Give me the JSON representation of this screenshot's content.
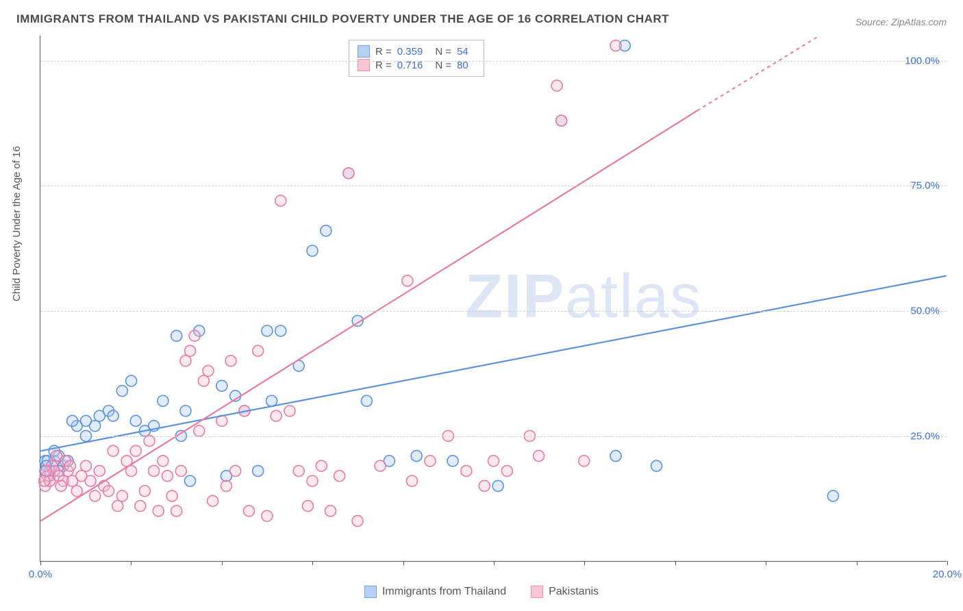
{
  "title": "IMMIGRANTS FROM THAILAND VS PAKISTANI CHILD POVERTY UNDER THE AGE OF 16 CORRELATION CHART",
  "source": "Source: ZipAtlas.com",
  "ylabel": "Child Poverty Under the Age of 16",
  "watermark_bold": "ZIP",
  "watermark_rest": "atlas",
  "chart": {
    "type": "scatter-with-regression",
    "xlim": [
      0,
      20
    ],
    "ylim": [
      0,
      105
    ],
    "x_ticks_labeled": [
      {
        "v": 0.0,
        "label": "0.0%"
      },
      {
        "v": 20.0,
        "label": "20.0%"
      }
    ],
    "x_ticks_minor": [
      2.0,
      4.0,
      6.0,
      8.0,
      10.0,
      12.0,
      14.0,
      16.0,
      18.0
    ],
    "y_ticks": [
      {
        "v": 25.0,
        "label": "25.0%"
      },
      {
        "v": 50.0,
        "label": "50.0%"
      },
      {
        "v": 75.0,
        "label": "75.0%"
      },
      {
        "v": 100.0,
        "label": "100.0%"
      }
    ],
    "background_color": "#ffffff",
    "grid_color": "#d0d0d0",
    "axis_color": "#555555",
    "tick_label_color": "#3b6fd8",
    "marker_radius": 8,
    "marker_stroke_width": 1.6,
    "marker_fill_opacity": 0.35,
    "series": [
      {
        "key": "thailand",
        "label": "Immigrants from Thailand",
        "color_stroke": "#5a91e0",
        "color_fill": "#a9c8f2",
        "r_value": "0.359",
        "n_value": "54",
        "regression": {
          "x1": 0,
          "y1": 22,
          "x2": 20,
          "y2": 57
        },
        "points": [
          [
            0.1,
            20
          ],
          [
            0.2,
            18
          ],
          [
            0.3,
            20
          ],
          [
            0.4,
            21
          ],
          [
            0.5,
            19
          ],
          [
            0.3,
            22
          ],
          [
            0.6,
            20
          ],
          [
            0.8,
            27
          ],
          [
            1.0,
            28
          ],
          [
            1.2,
            27
          ],
          [
            1.3,
            29
          ],
          [
            1.5,
            30
          ],
          [
            1.6,
            29
          ],
          [
            1.8,
            34
          ],
          [
            2.0,
            36
          ],
          [
            2.1,
            28
          ],
          [
            2.3,
            26
          ],
          [
            2.5,
            27
          ],
          [
            2.7,
            32
          ],
          [
            3.0,
            45
          ],
          [
            3.1,
            25
          ],
          [
            3.2,
            30
          ],
          [
            3.3,
            16
          ],
          [
            3.5,
            46
          ],
          [
            4.0,
            35
          ],
          [
            4.1,
            17
          ],
          [
            4.3,
            33
          ],
          [
            4.5,
            30
          ],
          [
            5.0,
            46
          ],
          [
            5.1,
            32
          ],
          [
            5.3,
            46
          ],
          [
            5.7,
            39
          ],
          [
            6.0,
            62
          ],
          [
            6.3,
            66
          ],
          [
            7.0,
            48
          ],
          [
            7.2,
            32
          ],
          [
            7.7,
            20
          ],
          [
            8.3,
            21
          ],
          [
            9.1,
            20
          ],
          [
            10.1,
            15
          ],
          [
            11.5,
            88
          ],
          [
            12.7,
            21
          ],
          [
            12.9,
            103
          ],
          [
            13.6,
            19
          ],
          [
            17.5,
            13
          ],
          [
            6.8,
            77.5
          ],
          [
            4.8,
            18
          ],
          [
            1.0,
            25
          ],
          [
            0.7,
            28
          ],
          [
            0.4,
            18
          ],
          [
            0.2,
            17
          ],
          [
            0.15,
            20
          ],
          [
            0.12,
            19
          ],
          [
            0.1,
            18
          ]
        ]
      },
      {
        "key": "pakistanis",
        "label": "Pakistanis",
        "color_stroke": "#e97aa0",
        "color_fill": "#f6bdd0",
        "r_value": "0.716",
        "n_value": "80",
        "regression": {
          "x1": 0,
          "y1": 8,
          "x2": 14.5,
          "y2": 90
        },
        "regression_dashed_ext": {
          "x1": 14.5,
          "y1": 90,
          "x2": 17.2,
          "y2": 105
        },
        "points": [
          [
            0.1,
            15
          ],
          [
            0.15,
            17
          ],
          [
            0.2,
            16
          ],
          [
            0.25,
            19
          ],
          [
            0.3,
            18
          ],
          [
            0.4,
            17
          ],
          [
            0.5,
            16
          ],
          [
            0.6,
            18
          ],
          [
            0.7,
            16
          ],
          [
            0.8,
            14
          ],
          [
            0.9,
            17
          ],
          [
            1.0,
            19
          ],
          [
            1.1,
            16
          ],
          [
            1.2,
            13
          ],
          [
            1.3,
            18
          ],
          [
            1.4,
            15
          ],
          [
            1.5,
            14
          ],
          [
            1.6,
            22
          ],
          [
            1.7,
            11
          ],
          [
            1.8,
            13
          ],
          [
            1.9,
            20
          ],
          [
            2.0,
            18
          ],
          [
            2.1,
            22
          ],
          [
            2.2,
            11
          ],
          [
            2.3,
            14
          ],
          [
            2.4,
            24
          ],
          [
            2.5,
            18
          ],
          [
            2.6,
            10
          ],
          [
            2.7,
            20
          ],
          [
            2.8,
            17
          ],
          [
            2.9,
            13
          ],
          [
            3.0,
            10
          ],
          [
            3.1,
            18
          ],
          [
            3.2,
            40
          ],
          [
            3.3,
            42
          ],
          [
            3.4,
            45
          ],
          [
            3.5,
            26
          ],
          [
            3.6,
            36
          ],
          [
            3.7,
            38
          ],
          [
            3.8,
            12
          ],
          [
            4.0,
            28
          ],
          [
            4.1,
            15
          ],
          [
            4.2,
            40
          ],
          [
            4.3,
            18
          ],
          [
            4.5,
            30
          ],
          [
            4.6,
            10
          ],
          [
            4.8,
            42
          ],
          [
            5.0,
            9
          ],
          [
            5.2,
            29
          ],
          [
            5.3,
            72
          ],
          [
            5.5,
            30
          ],
          [
            5.7,
            18
          ],
          [
            5.9,
            11
          ],
          [
            6.0,
            16
          ],
          [
            6.2,
            19
          ],
          [
            6.4,
            10
          ],
          [
            6.6,
            17
          ],
          [
            7.0,
            8
          ],
          [
            7.5,
            19
          ],
          [
            8.1,
            56
          ],
          [
            8.2,
            16
          ],
          [
            8.6,
            20
          ],
          [
            9.0,
            25
          ],
          [
            9.4,
            18
          ],
          [
            9.8,
            15
          ],
          [
            10.0,
            20
          ],
          [
            10.3,
            18
          ],
          [
            10.8,
            25
          ],
          [
            11.0,
            21
          ],
          [
            11.4,
            95
          ],
          [
            11.5,
            88
          ],
          [
            12.0,
            20
          ],
          [
            12.7,
            103
          ],
          [
            6.8,
            77.5
          ],
          [
            0.35,
            21
          ],
          [
            0.45,
            15
          ],
          [
            0.55,
            20
          ],
          [
            0.65,
            19
          ],
          [
            0.12,
            18
          ],
          [
            0.08,
            16
          ]
        ]
      }
    ],
    "bottom_legend": [
      {
        "key": "thailand"
      },
      {
        "key": "pakistanis"
      }
    ]
  }
}
